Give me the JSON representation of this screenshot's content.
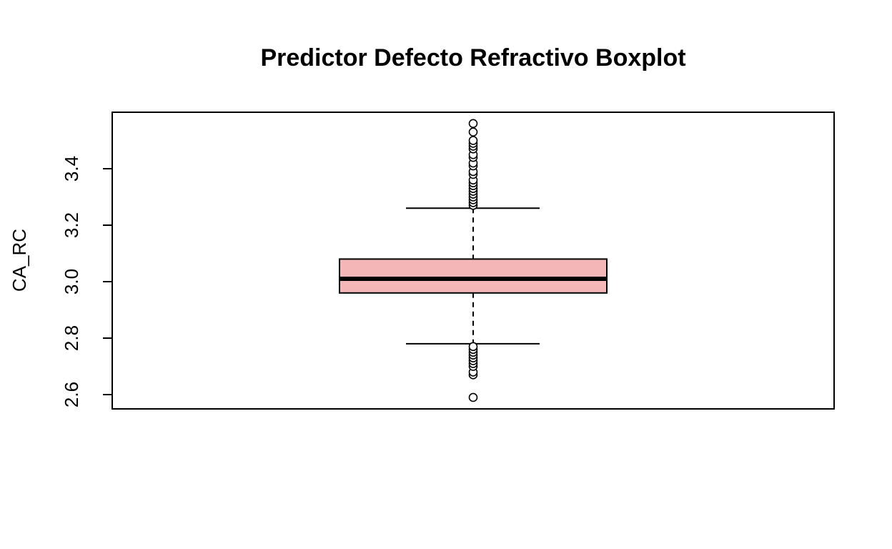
{
  "chart_data": {
    "type": "boxplot",
    "title": "Predictor Defecto Refractivo Boxplot",
    "xlabel": "",
    "ylabel": "CA_RC",
    "ylim": [
      2.55,
      3.6
    ],
    "yticks": [
      2.6,
      2.8,
      3.0,
      3.2,
      3.4
    ],
    "ytick_labels": [
      "2.6",
      "2.8",
      "3.0",
      "3.2",
      "3.4"
    ],
    "grid": false,
    "box": {
      "fill_color": "#f4b6b6",
      "stroke_color": "#000000",
      "whisker_low": 2.78,
      "q1": 2.96,
      "median": 3.01,
      "q3": 3.08,
      "whisker_high": 3.26
    },
    "outliers": [
      2.59,
      2.67,
      2.68,
      2.7,
      2.71,
      2.72,
      2.73,
      2.74,
      2.75,
      2.76,
      2.77,
      3.27,
      3.28,
      3.29,
      3.3,
      3.31,
      3.32,
      3.33,
      3.34,
      3.35,
      3.36,
      3.38,
      3.39,
      3.41,
      3.42,
      3.44,
      3.45,
      3.47,
      3.48,
      3.49,
      3.5,
      3.53,
      3.56
    ]
  }
}
